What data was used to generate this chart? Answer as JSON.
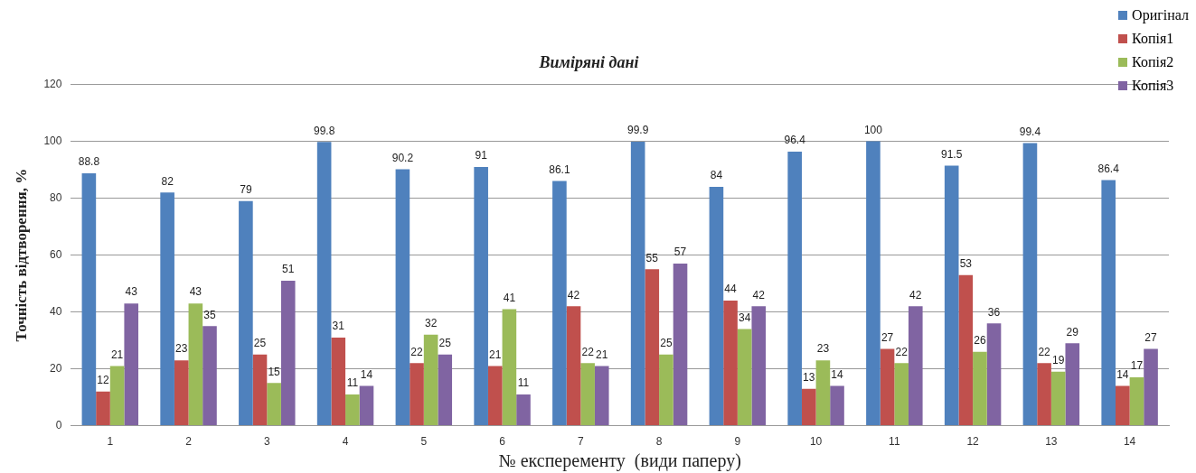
{
  "chart_data": {
    "type": "bar",
    "title": "Виміряні дані",
    "xlabel": "№ експеременту  (види паперу)",
    "ylabel": "Точність відтворення, %",
    "categories": [
      "1",
      "2",
      "3",
      "4",
      "5",
      "6",
      "7",
      "8",
      "9",
      "10",
      "11",
      "12",
      "13",
      "14"
    ],
    "series": [
      {
        "name": "Оригінал",
        "color": "#4f81bd",
        "values": [
          88.8,
          82,
          79,
          99.8,
          90.2,
          91,
          86.1,
          99.9,
          84,
          96.4,
          100,
          91.5,
          99.4,
          86.4
        ]
      },
      {
        "name": "Копія1",
        "color": "#c0504d",
        "values": [
          12,
          23,
          25,
          31,
          22,
          21,
          42,
          55,
          44,
          13,
          27,
          53,
          22,
          14
        ]
      },
      {
        "name": "Копія2",
        "color": "#9bbb59",
        "values": [
          21,
          43,
          15,
          11,
          32,
          41,
          22,
          25,
          34,
          23,
          22,
          26,
          19,
          17
        ]
      },
      {
        "name": "Копія3",
        "color": "#8064a2",
        "values": [
          43,
          35,
          51,
          14,
          25,
          11,
          21,
          57,
          42,
          14,
          42,
          36,
          29,
          27
        ]
      }
    ],
    "ylim": [
      0,
      120
    ],
    "yticks": [
      0,
      20,
      40,
      60,
      80,
      100,
      120
    ],
    "grid": "y",
    "legend": "top right",
    "data_labels": true
  }
}
